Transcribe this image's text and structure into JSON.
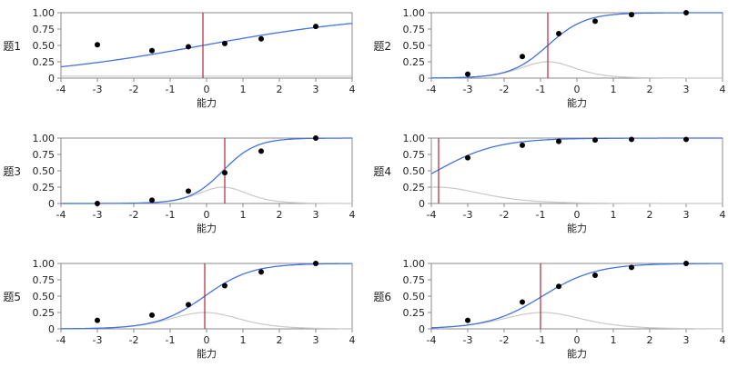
{
  "chart_data": [
    {
      "type": "line",
      "ylabel": "题1",
      "xlabel": "能力",
      "xlim": [
        -4,
        4
      ],
      "ylim": [
        0,
        1
      ],
      "x_ticks": [
        "-4",
        "-3",
        "-2",
        "-1",
        "0",
        "1",
        "2",
        "3",
        "4"
      ],
      "y_ticks": [
        "0",
        "0.25",
        "0.50",
        "0.75",
        "1.00"
      ],
      "vline_x": -0.1,
      "icc": {
        "a": 0.4,
        "b": -0.1,
        "c": 0.0
      },
      "info_curve": "flat",
      "points": [
        {
          "x": -3,
          "y": 0.51
        },
        {
          "x": -1.5,
          "y": 0.42
        },
        {
          "x": -0.5,
          "y": 0.48
        },
        {
          "x": 0.5,
          "y": 0.53
        },
        {
          "x": 1.5,
          "y": 0.6
        },
        {
          "x": 3,
          "y": 0.79
        }
      ]
    },
    {
      "type": "line",
      "ylabel": "题2",
      "xlabel": "能力",
      "xlim": [
        -4,
        4
      ],
      "ylim": [
        0,
        1
      ],
      "x_ticks": [
        "-4",
        "-3",
        "-2",
        "-1",
        "0",
        "1",
        "2",
        "3",
        "4"
      ],
      "y_ticks": [
        "0",
        "0.25",
        "0.50",
        "0.75",
        "1.00"
      ],
      "vline_x": -0.8,
      "icc": {
        "a": 1.95,
        "b": -0.8,
        "c": 0.0
      },
      "info_curve": "bell",
      "points": [
        {
          "x": -3,
          "y": 0.06
        },
        {
          "x": -1.5,
          "y": 0.33
        },
        {
          "x": -0.5,
          "y": 0.68
        },
        {
          "x": 0.5,
          "y": 0.87
        },
        {
          "x": 1.5,
          "y": 0.97
        },
        {
          "x": 3,
          "y": 1.0
        }
      ]
    },
    {
      "type": "line",
      "ylabel": "题3",
      "xlabel": "能力",
      "xlim": [
        -4,
        4
      ],
      "ylim": [
        0,
        1
      ],
      "x_ticks": [
        "-4",
        "-3",
        "-2",
        "-1",
        "0",
        "1",
        "2",
        "3",
        "4"
      ],
      "y_ticks": [
        "0",
        "0.25",
        "0.50",
        "0.75",
        "1.00"
      ],
      "vline_x": 0.5,
      "icc": {
        "a": 2.2,
        "b": 0.45,
        "c": 0.0
      },
      "info_curve": "bell",
      "points": [
        {
          "x": -3,
          "y": 0.0
        },
        {
          "x": -1.5,
          "y": 0.05
        },
        {
          "x": -0.5,
          "y": 0.19
        },
        {
          "x": 0.5,
          "y": 0.47
        },
        {
          "x": 1.5,
          "y": 0.8
        },
        {
          "x": 3,
          "y": 1.0
        }
      ]
    },
    {
      "type": "line",
      "ylabel": "题4",
      "xlabel": "能力",
      "xlim": [
        -4,
        4
      ],
      "ylim": [
        0,
        1
      ],
      "x_ticks": [
        "-4",
        "-3",
        "-2",
        "-1",
        "0",
        "1",
        "2",
        "3",
        "4"
      ],
      "y_ticks": [
        "0",
        "0.25",
        "0.50",
        "0.75",
        "1.00"
      ],
      "vline_x": -3.8,
      "icc": {
        "a": 1.2,
        "b": -3.85,
        "c": 0.0
      },
      "info_curve": "bell",
      "points": [
        {
          "x": -3,
          "y": 0.7
        },
        {
          "x": -1.5,
          "y": 0.89
        },
        {
          "x": -0.5,
          "y": 0.95
        },
        {
          "x": 0.5,
          "y": 0.97
        },
        {
          "x": 1.5,
          "y": 0.98
        },
        {
          "x": 3,
          "y": 0.98
        }
      ]
    },
    {
      "type": "line",
      "ylabel": "题5",
      "xlabel": "能力",
      "xlim": [
        -4,
        4
      ],
      "ylim": [
        0,
        1
      ],
      "x_ticks": [
        "-4",
        "-3",
        "-2",
        "-1",
        "0",
        "1",
        "2",
        "3",
        "4"
      ],
      "y_ticks": [
        "0",
        "0.25",
        "0.50",
        "0.75",
        "1.00"
      ],
      "vline_x": -0.05,
      "icc": {
        "a": 1.55,
        "b": -0.05,
        "c": 0.0
      },
      "info_curve": "bell",
      "points": [
        {
          "x": -3,
          "y": 0.13
        },
        {
          "x": -1.5,
          "y": 0.21
        },
        {
          "x": -0.5,
          "y": 0.37
        },
        {
          "x": 0.5,
          "y": 0.66
        },
        {
          "x": 1.5,
          "y": 0.87
        },
        {
          "x": 3,
          "y": 1.0
        }
      ]
    },
    {
      "type": "line",
      "ylabel": "题6",
      "xlabel": "能力",
      "xlim": [
        -4,
        4
      ],
      "ylim": [
        0,
        1
      ],
      "x_ticks": [
        "-4",
        "-3",
        "-2",
        "-1",
        "0",
        "1",
        "2",
        "3",
        "4"
      ],
      "y_ticks": [
        "0",
        "0.25",
        "0.50",
        "0.75",
        "1.00"
      ],
      "vline_x": -1.0,
      "icc": {
        "a": 1.35,
        "b": -0.95,
        "c": 0.0
      },
      "info_curve": "bell",
      "points": [
        {
          "x": -3,
          "y": 0.13
        },
        {
          "x": -1.5,
          "y": 0.41
        },
        {
          "x": -0.5,
          "y": 0.65
        },
        {
          "x": 0.5,
          "y": 0.82
        },
        {
          "x": 1.5,
          "y": 0.94
        },
        {
          "x": 3,
          "y": 1.0
        }
      ]
    }
  ],
  "colors": {
    "icc": "#4472e0",
    "info": "#c8c8c8",
    "vline": "#b3263b",
    "points": "#000000",
    "axis": "#8a8a8a",
    "text": "#222222"
  }
}
